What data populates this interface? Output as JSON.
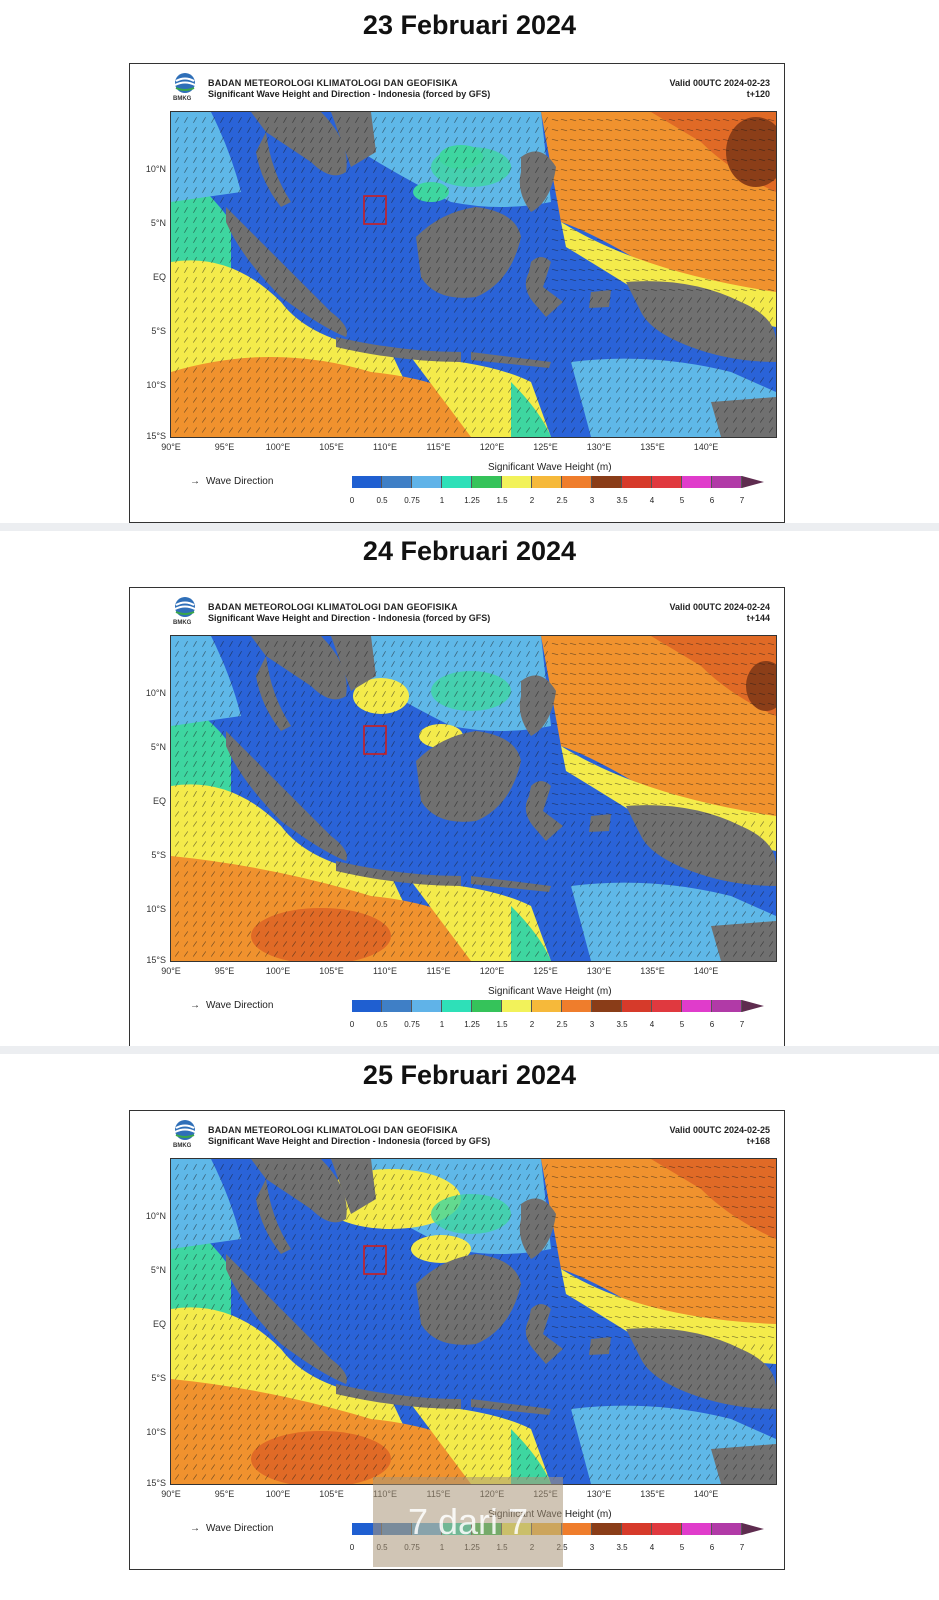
{
  "header": {
    "agency": "BADAN METEOROLOGI KLIMATOLOGI DAN GEOFISIKA",
    "subtitle": "Significant Wave Height and Direction - Indonesia (forced by GFS)",
    "logo_text": "BMKG"
  },
  "panels": [
    {
      "date_title": "23 Februari 2024",
      "valid": "Valid 00UTC 2024-02-23",
      "step": "t+120",
      "variant": 0
    },
    {
      "date_title": "24 Februari 2024",
      "valid": "Valid 00UTC 2024-02-24",
      "step": "t+144",
      "variant": 1
    },
    {
      "date_title": "25 Februari 2024",
      "valid": "Valid 00UTC 2024-02-25",
      "step": "t+168",
      "variant": 2
    }
  ],
  "axes": {
    "lat_labels": [
      "10°N",
      "5°N",
      "EQ",
      "5°S",
      "10°S",
      "15°S"
    ],
    "lon_labels": [
      "90°E",
      "95°E",
      "100°E",
      "105°E",
      "110°E",
      "115°E",
      "120°E",
      "125°E",
      "130°E",
      "135°E",
      "140°E"
    ]
  },
  "legend": {
    "wave_direction_label": "Wave Direction",
    "colorbar_title": "Significant Wave Height (m)",
    "colorbar_ticks": [
      "0",
      "0.5",
      "0.75",
      "1",
      "1.25",
      "1.5",
      "2",
      "2.5",
      "3",
      "3.5",
      "4",
      "5",
      "6",
      "7"
    ],
    "colorbar_colors": [
      "#1f5fd1",
      "#3f7fc6",
      "#60b3e8",
      "#2ee0b8",
      "#35c35a",
      "#f2f25a",
      "#f6b93a",
      "#ef7d2c",
      "#8a3d18",
      "#d63a2a",
      "#e0393f",
      "#e03ccb",
      "#b13aa7"
    ],
    "colorbar_tip_color": "#5e2c4f"
  },
  "colors": {
    "land": "#707070",
    "low_sea": "#2a63d8",
    "mid_sea": "#5fb8e8",
    "green_sea": "#3ed6a0",
    "yellow_sea": "#f4eb4b",
    "orange_sea": "#f0922e",
    "dark_orange_sea": "#e06a26",
    "brown_sea": "#8b3e18",
    "highlight_box": "#cc1f1f"
  },
  "overlay": {
    "page_indicator": "7 dari 7"
  }
}
